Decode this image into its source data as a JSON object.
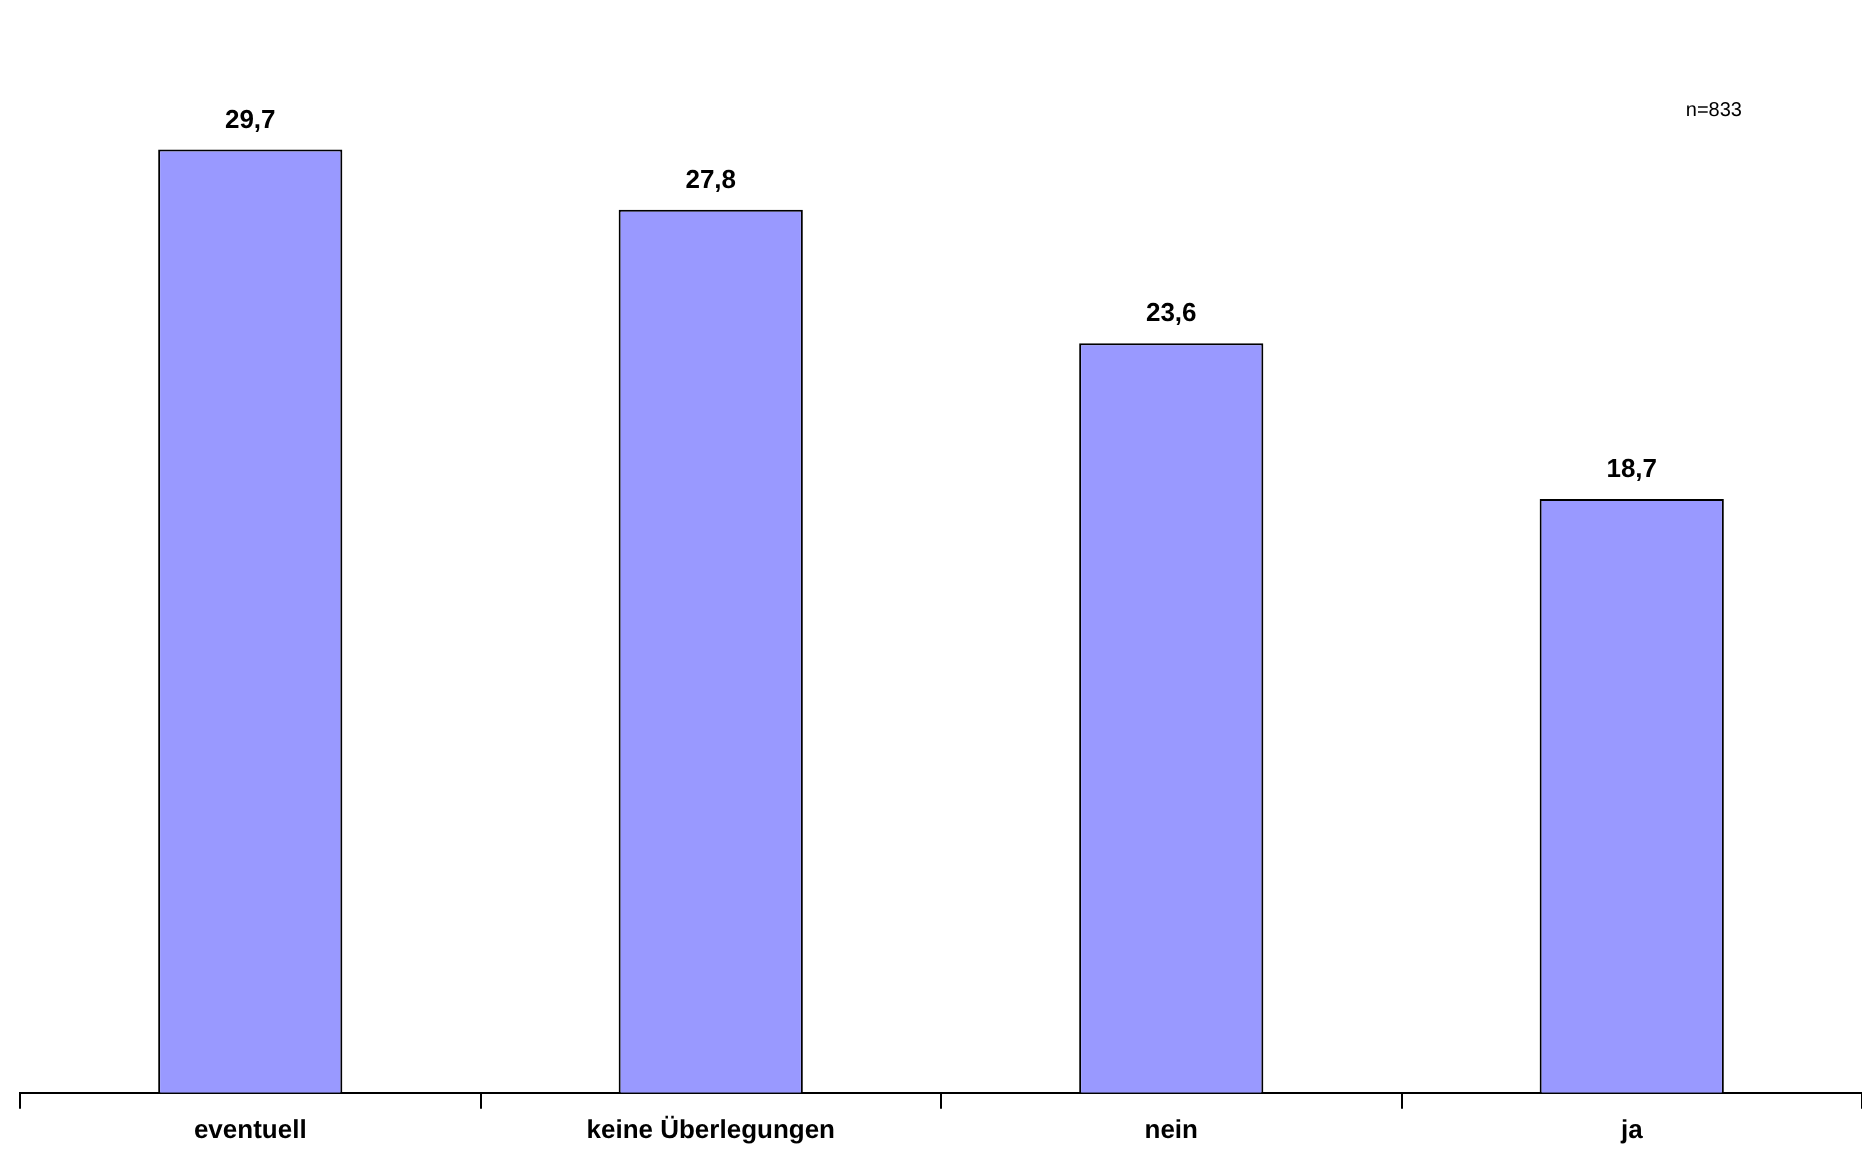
{
  "chart_data": {
    "type": "bar",
    "categories": [
      "eventuell",
      "keine Überlegungen",
      "nein",
      "ja"
    ],
    "values": [
      29.7,
      27.8,
      23.6,
      18.7
    ],
    "value_labels": [
      "29,7",
      "27,8",
      "23,6",
      "18,7"
    ],
    "color": "#9999ff",
    "annotations": [
      "n=833"
    ],
    "grid": false,
    "legend": false
  }
}
